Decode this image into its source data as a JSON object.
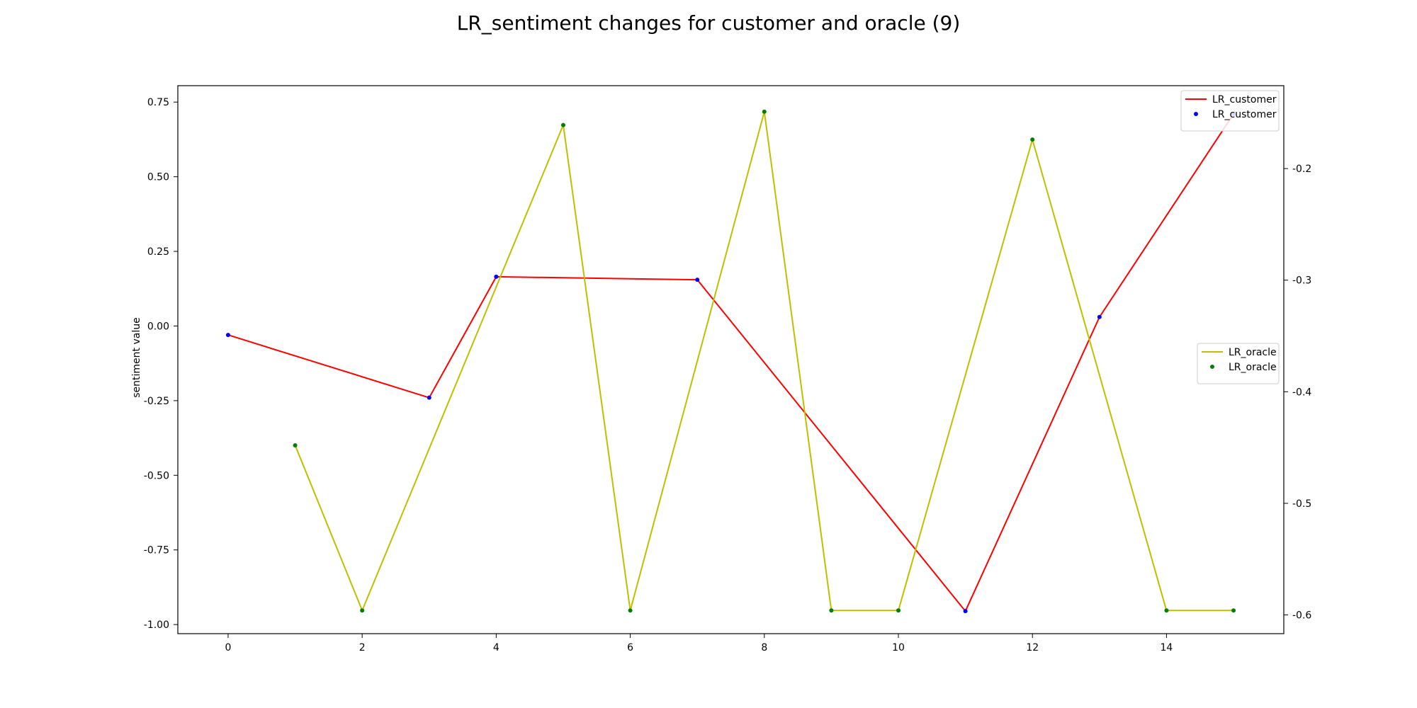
{
  "chart_data": {
    "type": "line",
    "title": "LR_sentiment changes for customer and oracle (9)",
    "xlabel": "",
    "ylabel": "sentiment value",
    "right_ylabel": "",
    "xlim": [
      -0.75,
      15.75
    ],
    "ylim": [
      -1.0305,
      0.805
    ],
    "right_ylim": [
      -0.6168,
      -0.1257
    ],
    "x_ticks": [
      0,
      2,
      4,
      6,
      8,
      10,
      12,
      14
    ],
    "y_ticks": [
      0.75,
      0.5,
      0.25,
      0.0,
      -0.25,
      -0.5,
      -0.75,
      -1.0
    ],
    "y_tick_labels": [
      "0.75",
      "0.50",
      "0.25",
      "0.00",
      "-0.25",
      "-0.50",
      "-0.75",
      "-1.00"
    ],
    "right_ticks": [
      -0.2,
      -0.3,
      -0.4,
      -0.5,
      -0.6
    ],
    "right_tick_labels": [
      "-0.2",
      "-0.3",
      "-0.4",
      "-0.5",
      "-0.6"
    ],
    "grid": false,
    "series": [
      {
        "name": "LR_customer",
        "axis": "left",
        "line_color": "#ff0000",
        "marker_color": "#0000ff",
        "x": [
          0,
          3,
          4,
          7,
          11,
          13,
          15
        ],
        "y": [
          -0.03,
          -0.24,
          0.165,
          0.155,
          -0.955,
          0.03,
          0.71
        ]
      },
      {
        "name": "LR_oracle",
        "axis": "right",
        "line_color": "#bfbf00",
        "marker_color": "#008000",
        "x": [
          1,
          2,
          5,
          6,
          8,
          9,
          10,
          12,
          14,
          15
        ],
        "y": [
          -0.448,
          -0.596,
          -0.161,
          -0.596,
          -0.149,
          -0.596,
          -0.596,
          -0.174,
          -0.596,
          -0.596
        ]
      }
    ],
    "legends": [
      {
        "placement": "top-right",
        "entries": [
          {
            "label": "LR_customer",
            "kind": "line",
            "color": "#ff0000"
          },
          {
            "label": "LR_customer",
            "kind": "marker",
            "color": "#0000ff"
          }
        ]
      },
      {
        "placement": "center-right",
        "entries": [
          {
            "label": "LR_oracle",
            "kind": "line",
            "color": "#bfbf00"
          },
          {
            "label": "LR_oracle",
            "kind": "marker",
            "color": "#008000"
          }
        ]
      }
    ]
  }
}
